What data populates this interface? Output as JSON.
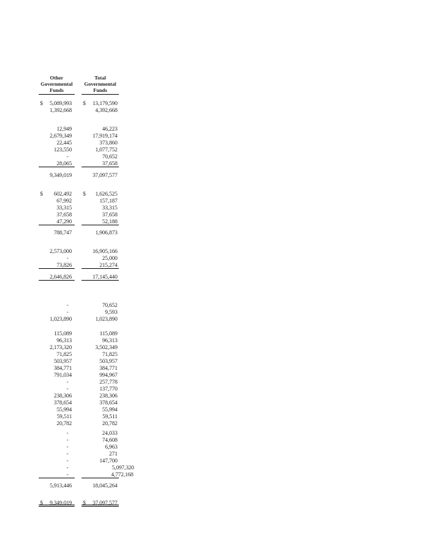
{
  "page": {
    "background_color": "#ffffff",
    "text_color": "#1b1b1b",
    "description": "Scanned financial statement fragment: two amount columns of a governmental funds balance sheet, row labels cropped out of view"
  },
  "table": {
    "columns": [
      {
        "lines": [
          "Other",
          "Governmental",
          "Funds"
        ]
      },
      {
        "lines": [
          "Total",
          "Governmental",
          "Funds"
        ]
      }
    ],
    "rows": [
      {
        "c1": "$ 5,089,993",
        "c2": "$ 13,179,590"
      },
      {
        "c1": "1,392,668",
        "c2": "4,392,668"
      },
      {
        "c1": "12,949",
        "c2": "46,223",
        "mt": 17
      },
      {
        "c1": "2,679,349",
        "c2": "17,919,174"
      },
      {
        "c1": "22,445",
        "c2": "373,860"
      },
      {
        "c1": "123,550",
        "c2": "1,077,752"
      },
      {
        "c1": "-",
        "c2": "70,652"
      },
      {
        "c1": "28,065",
        "c2": "37,658",
        "rule": "single"
      },
      {
        "c1": "9,349,019",
        "c2": "37,097,577",
        "mt": 7
      },
      {
        "c1": "$ 602,492",
        "c2": "$ 1,626,525",
        "mt": 17
      },
      {
        "c1": "67,992",
        "c2": "157,187"
      },
      {
        "c1": "33,315",
        "c2": "33,315"
      },
      {
        "c1": "37,658",
        "c2": "37,658"
      },
      {
        "c1": "47,290",
        "c2": "52,188",
        "rule": "single"
      },
      {
        "c1": "788,747",
        "c2": "1,906,873",
        "mt": 6
      },
      {
        "c1": "2,573,000",
        "c2": "16,905,166",
        "mt": 17
      },
      {
        "c1": "-",
        "c2": "25,000"
      },
      {
        "c1": "73,826",
        "c2": "215,274",
        "rule": "single"
      },
      {
        "c1": "2,646,826",
        "c2": "17,145,440",
        "mt": 7,
        "rule": "single"
      },
      {
        "c1": "-",
        "c2": "70,652",
        "mt": 31
      },
      {
        "c1": "-",
        "c2": "9,593"
      },
      {
        "c1": "1,023,890",
        "c2": "1,023,890"
      },
      {
        "c1": "115,089",
        "c2": "115,089",
        "mt": 11
      },
      {
        "c1": "96,313",
        "c2": "96,313"
      },
      {
        "c1": "2,173,320",
        "c2": "3,502,349"
      },
      {
        "c1": "71,825",
        "c2": "71,825"
      },
      {
        "c1": "503,957",
        "c2": "503,957"
      },
      {
        "c1": "384,771",
        "c2": "384,771"
      },
      {
        "c1": "791,034",
        "c2": "994,967"
      },
      {
        "c1": "-",
        "c2": "257,778"
      },
      {
        "c1": "-",
        "c2": "137,770"
      },
      {
        "c1": "238,306",
        "c2": "238,306"
      },
      {
        "c1": "378,654",
        "c2": "378,654"
      },
      {
        "c1": "55,994",
        "c2": "55,994"
      },
      {
        "c1": "59,511",
        "c2": "59,511"
      },
      {
        "c1": "20,782",
        "c2": "20,782"
      },
      {
        "c1": "-",
        "c2": "24,033",
        "mt": 4
      },
      {
        "c1": "-",
        "c2": "74,608"
      },
      {
        "c1": "-",
        "c2": "6,963"
      },
      {
        "c1": "-",
        "c2": "271"
      },
      {
        "c1": "-",
        "c2": "147,700"
      },
      {
        "c1": "-",
        "c2": "5,097,320",
        "shift2": 24
      },
      {
        "c1": "-",
        "c2": "4,772,168",
        "shift2": 23,
        "rule": "single"
      },
      {
        "c1": "5,913,446",
        "c2": "18,045,264",
        "mt": 6
      },
      {
        "c1": "$ 9,349,019",
        "c2": "$ 37,097,577",
        "mt": 15,
        "rule": "double"
      }
    ]
  }
}
